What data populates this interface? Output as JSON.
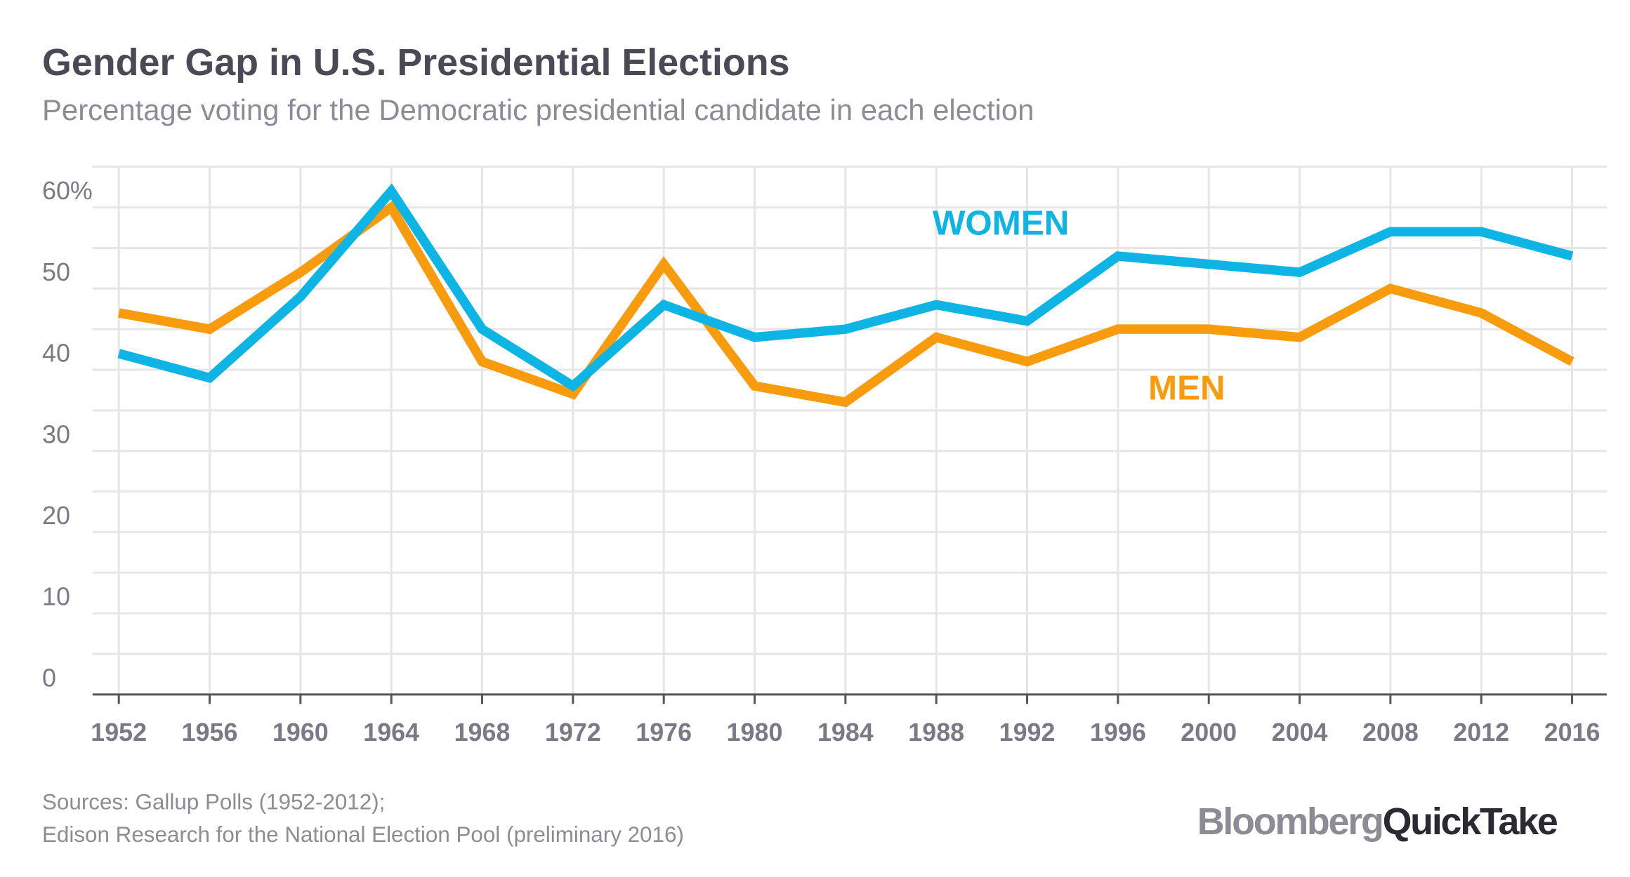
{
  "chart_data": {
    "type": "line",
    "title": "Gender Gap in U.S. Presidential Elections",
    "subtitle": "Percentage voting for the Democratic presidential candidate in each election",
    "x": [
      1952,
      1956,
      1960,
      1964,
      1968,
      1972,
      1976,
      1980,
      1984,
      1988,
      1992,
      1996,
      2000,
      2004,
      2008,
      2012,
      2016
    ],
    "series": [
      {
        "name": "WOMEN",
        "color": "#0db4e4",
        "values": [
          42,
          39,
          49,
          62,
          45,
          38,
          48,
          44,
          45,
          48,
          46,
          54,
          53,
          52,
          57,
          57,
          54
        ]
      },
      {
        "name": "MEN",
        "color": "#f89c0e",
        "values": [
          47,
          45,
          52,
          60,
          41,
          37,
          53,
          38,
          36,
          44,
          41,
          45,
          45,
          44,
          50,
          47,
          41
        ]
      }
    ],
    "ylim": [
      0,
      65
    ],
    "yticks": [
      0,
      10,
      20,
      30,
      40,
      50,
      {
        "value": 60,
        "label": "60%"
      }
    ],
    "grid": true,
    "source": [
      "Sources: Gallup Polls (1952-2012);",
      "Edison Research for the National Election Pool (preliminary 2016)"
    ],
    "logo": [
      "Bloomberg",
      "QuickTake"
    ]
  }
}
